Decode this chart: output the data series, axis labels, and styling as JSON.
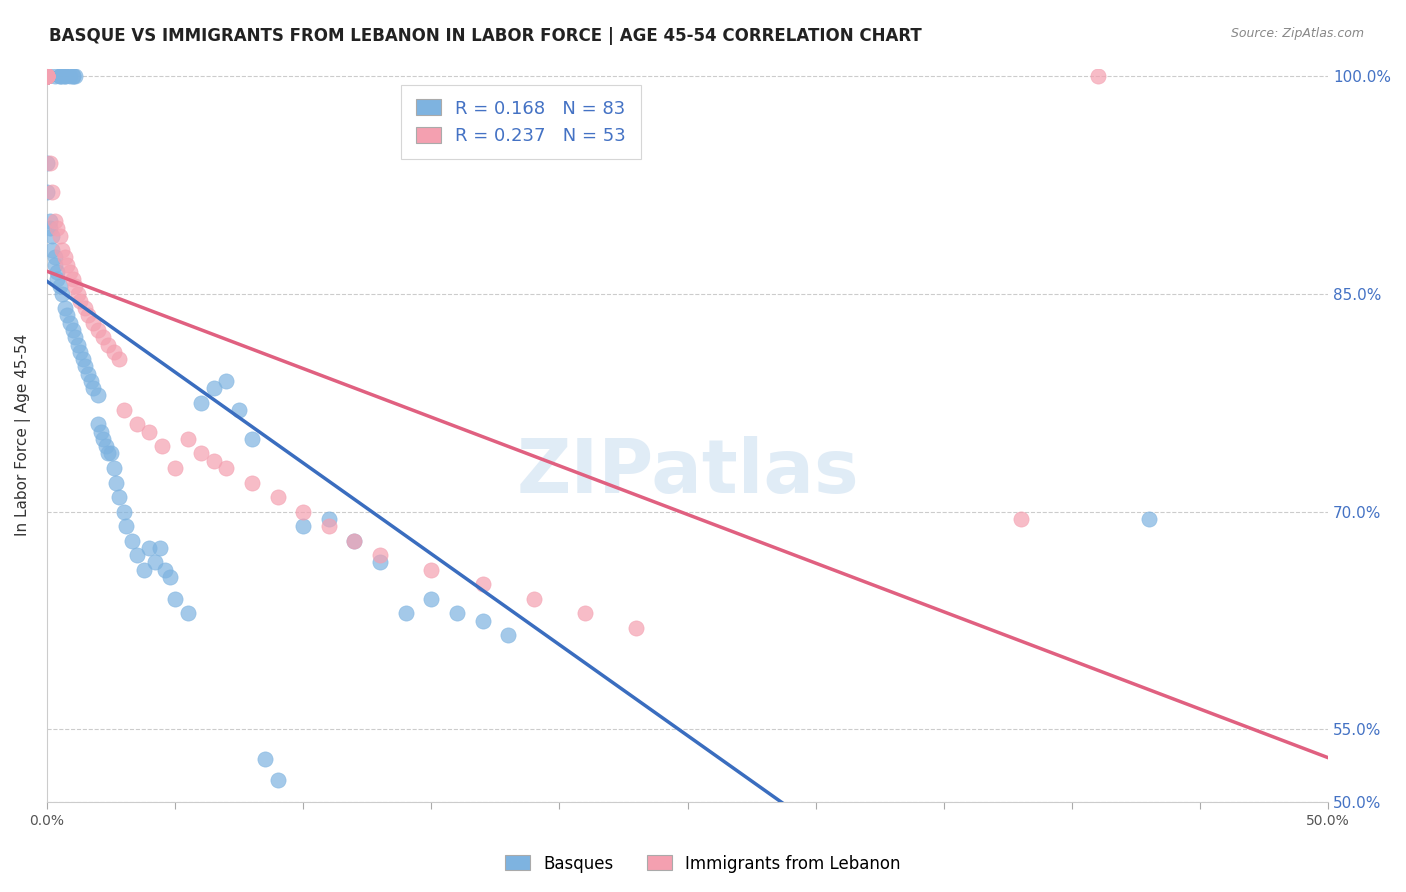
{
  "title": "BASQUE VS IMMIGRANTS FROM LEBANON IN LABOR FORCE | AGE 45-54 CORRELATION CHART",
  "source": "Source: ZipAtlas.com",
  "ylabel": "In Labor Force | Age 45-54",
  "xlim": [
    0.0,
    0.5
  ],
  "ylim": [
    0.5,
    1.005
  ],
  "xtick_vals": [
    0.0,
    0.05,
    0.1,
    0.15,
    0.2,
    0.25,
    0.3,
    0.35,
    0.4,
    0.45,
    0.5
  ],
  "xtick_labels": [
    "0.0%",
    "",
    "",
    "",
    "",
    "",
    "",
    "",
    "",
    "",
    "50.0%"
  ],
  "ytick_vals": [
    0.5,
    0.55,
    0.7,
    0.85,
    1.0
  ],
  "ytick_labels": [
    "50.0%",
    "55.0%",
    "70.0%",
    "85.0%",
    "100.0%"
  ],
  "grid_color": "#cccccc",
  "background_color": "#ffffff",
  "blue_color": "#7EB3E0",
  "pink_color": "#F4A0B0",
  "blue_line_color": "#3A6DBF",
  "pink_line_color": "#E06080",
  "legend_R_blue": "0.168",
  "legend_N_blue": "83",
  "legend_R_pink": "0.237",
  "legend_N_pink": "53",
  "watermark": "ZIPatlas",
  "legend_label_blue": "Basques",
  "legend_label_pink": "Immigrants from Lebanon",
  "blue_x": [
    0.0,
    0.0,
    0.0,
    0.0,
    0.0,
    0.0,
    0.0,
    0.0,
    0.0,
    0.0,
    0.003,
    0.005,
    0.005,
    0.006,
    0.007,
    0.007,
    0.009,
    0.01,
    0.01,
    0.011,
    0.0,
    0.0,
    0.001,
    0.001,
    0.002,
    0.002,
    0.003,
    0.003,
    0.004,
    0.004,
    0.005,
    0.006,
    0.007,
    0.008,
    0.009,
    0.01,
    0.011,
    0.012,
    0.013,
    0.014,
    0.015,
    0.016,
    0.017,
    0.018,
    0.02,
    0.02,
    0.021,
    0.022,
    0.023,
    0.024,
    0.025,
    0.026,
    0.027,
    0.028,
    0.03,
    0.031,
    0.033,
    0.035,
    0.038,
    0.04,
    0.042,
    0.044,
    0.046,
    0.048,
    0.05,
    0.055,
    0.06,
    0.065,
    0.07,
    0.075,
    0.08,
    0.085,
    0.09,
    0.1,
    0.11,
    0.12,
    0.13,
    0.14,
    0.15,
    0.16,
    0.17,
    0.18,
    0.43
  ],
  "blue_y": [
    1.0,
    1.0,
    1.0,
    1.0,
    1.0,
    1.0,
    1.0,
    1.0,
    1.0,
    1.0,
    1.0,
    1.0,
    1.0,
    1.0,
    1.0,
    1.0,
    1.0,
    1.0,
    1.0,
    1.0,
    0.94,
    0.92,
    0.9,
    0.895,
    0.89,
    0.88,
    0.875,
    0.87,
    0.865,
    0.86,
    0.855,
    0.85,
    0.84,
    0.835,
    0.83,
    0.825,
    0.82,
    0.815,
    0.81,
    0.805,
    0.8,
    0.795,
    0.79,
    0.785,
    0.78,
    0.76,
    0.755,
    0.75,
    0.745,
    0.74,
    0.74,
    0.73,
    0.72,
    0.71,
    0.7,
    0.69,
    0.68,
    0.67,
    0.66,
    0.675,
    0.665,
    0.675,
    0.66,
    0.655,
    0.64,
    0.63,
    0.775,
    0.785,
    0.79,
    0.77,
    0.75,
    0.53,
    0.515,
    0.69,
    0.695,
    0.68,
    0.665,
    0.63,
    0.64,
    0.63,
    0.625,
    0.615,
    0.695
  ],
  "pink_x": [
    0.0,
    0.0,
    0.0,
    0.0,
    0.0,
    0.0,
    0.0,
    0.0,
    0.0,
    0.0,
    0.001,
    0.002,
    0.003,
    0.004,
    0.005,
    0.006,
    0.007,
    0.008,
    0.009,
    0.01,
    0.011,
    0.012,
    0.013,
    0.015,
    0.016,
    0.018,
    0.02,
    0.022,
    0.024,
    0.026,
    0.028,
    0.03,
    0.035,
    0.04,
    0.045,
    0.05,
    0.055,
    0.06,
    0.065,
    0.07,
    0.08,
    0.09,
    0.1,
    0.11,
    0.12,
    0.13,
    0.15,
    0.17,
    0.19,
    0.21,
    0.23,
    0.38,
    0.41
  ],
  "pink_y": [
    1.0,
    1.0,
    1.0,
    1.0,
    1.0,
    1.0,
    1.0,
    1.0,
    1.0,
    1.0,
    0.94,
    0.92,
    0.9,
    0.895,
    0.89,
    0.88,
    0.875,
    0.87,
    0.865,
    0.86,
    0.855,
    0.85,
    0.845,
    0.84,
    0.835,
    0.83,
    0.825,
    0.82,
    0.815,
    0.81,
    0.805,
    0.77,
    0.76,
    0.755,
    0.745,
    0.73,
    0.75,
    0.74,
    0.735,
    0.73,
    0.72,
    0.71,
    0.7,
    0.69,
    0.68,
    0.67,
    0.66,
    0.65,
    0.64,
    0.63,
    0.62,
    0.695,
    1.0
  ]
}
